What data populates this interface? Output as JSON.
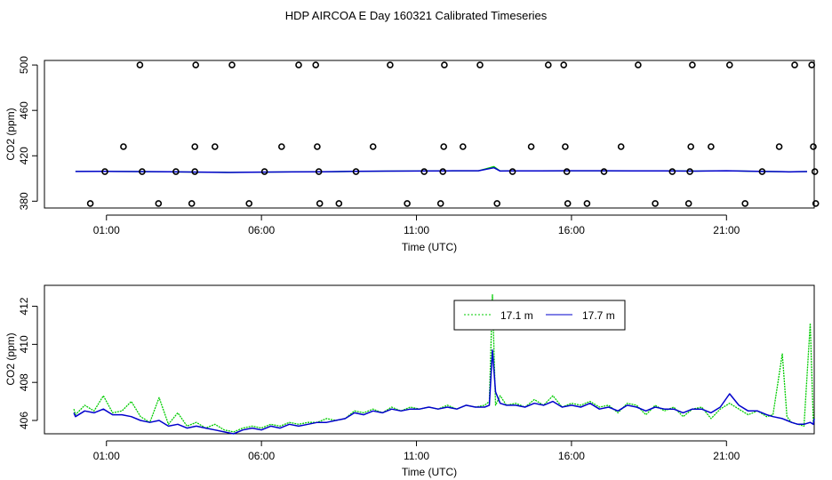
{
  "title": "HDP AIRCOA E  Day 160321  Calibrated Timeseries",
  "chart_data": [
    {
      "type": "scatter+line",
      "xlabel": "Time (UTC)",
      "ylabel": "CO2 (ppm)",
      "xlim": [
        -1.0,
        23.83
      ],
      "ylim": [
        374,
        504
      ],
      "xticks": [
        {
          "value": 1,
          "label": "01:00"
        },
        {
          "value": 6,
          "label": "06:00"
        },
        {
          "value": 11,
          "label": "11:00"
        },
        {
          "value": 16,
          "label": "16:00"
        },
        {
          "value": 21,
          "label": "21:00"
        }
      ],
      "yticks": [
        {
          "value": 380,
          "label": "380"
        },
        {
          "value": 420,
          "label": "420"
        },
        {
          "value": 460,
          "label": "460"
        },
        {
          "value": 500,
          "label": "500"
        }
      ],
      "cal_points": [
        {
          "x": 0.48,
          "y": 378
        },
        {
          "x": 0.95,
          "y": 406
        },
        {
          "x": 1.55,
          "y": 428
        },
        {
          "x": 2.08,
          "y": 500
        },
        {
          "x": 2.15,
          "y": 406
        },
        {
          "x": 2.68,
          "y": 378
        },
        {
          "x": 3.24,
          "y": 406
        },
        {
          "x": 3.75,
          "y": 378
        },
        {
          "x": 3.85,
          "y": 406
        },
        {
          "x": 3.85,
          "y": 428
        },
        {
          "x": 3.88,
          "y": 500
        },
        {
          "x": 4.5,
          "y": 428
        },
        {
          "x": 5.05,
          "y": 500
        },
        {
          "x": 5.6,
          "y": 378
        },
        {
          "x": 6.1,
          "y": 406
        },
        {
          "x": 6.65,
          "y": 428
        },
        {
          "x": 7.2,
          "y": 500
        },
        {
          "x": 7.75,
          "y": 500
        },
        {
          "x": 7.8,
          "y": 428
        },
        {
          "x": 7.85,
          "y": 406
        },
        {
          "x": 7.88,
          "y": 378
        },
        {
          "x": 8.5,
          "y": 378
        },
        {
          "x": 9.05,
          "y": 406
        },
        {
          "x": 9.6,
          "y": 428
        },
        {
          "x": 10.15,
          "y": 500
        },
        {
          "x": 10.7,
          "y": 378
        },
        {
          "x": 11.25,
          "y": 406
        },
        {
          "x": 11.78,
          "y": 378
        },
        {
          "x": 11.85,
          "y": 406
        },
        {
          "x": 11.88,
          "y": 428
        },
        {
          "x": 11.9,
          "y": 500
        },
        {
          "x": 12.5,
          "y": 428
        },
        {
          "x": 13.05,
          "y": 500
        },
        {
          "x": 13.6,
          "y": 378
        },
        {
          "x": 14.1,
          "y": 406
        },
        {
          "x": 14.7,
          "y": 428
        },
        {
          "x": 15.25,
          "y": 500
        },
        {
          "x": 15.75,
          "y": 500
        },
        {
          "x": 15.8,
          "y": 428
        },
        {
          "x": 15.85,
          "y": 406
        },
        {
          "x": 15.88,
          "y": 378
        },
        {
          "x": 16.5,
          "y": 378
        },
        {
          "x": 17.05,
          "y": 406
        },
        {
          "x": 17.6,
          "y": 428
        },
        {
          "x": 18.15,
          "y": 500
        },
        {
          "x": 18.7,
          "y": 378
        },
        {
          "x": 19.25,
          "y": 406
        },
        {
          "x": 19.78,
          "y": 378
        },
        {
          "x": 19.82,
          "y": 406
        },
        {
          "x": 19.85,
          "y": 428
        },
        {
          "x": 19.9,
          "y": 500
        },
        {
          "x": 20.5,
          "y": 428
        },
        {
          "x": 21.1,
          "y": 500
        },
        {
          "x": 21.6,
          "y": 378
        },
        {
          "x": 22.15,
          "y": 406
        },
        {
          "x": 22.7,
          "y": 428
        },
        {
          "x": 23.2,
          "y": 500
        },
        {
          "x": 23.75,
          "y": 500
        },
        {
          "x": 23.8,
          "y": 428
        },
        {
          "x": 23.85,
          "y": 406
        },
        {
          "x": 23.88,
          "y": 378
        }
      ],
      "series": [
        {
          "name": "17.1 m",
          "color": "#00cc00",
          "x": [
            0.0,
            1.0,
            2.0,
            3.0,
            4.0,
            5.0,
            6.0,
            7.0,
            8.0,
            9.0,
            10.0,
            11.0,
            12.0,
            13.0,
            13.5,
            13.7,
            14.0,
            15.0,
            16.0,
            17.0,
            18.0,
            19.0,
            20.0,
            21.0,
            22.0,
            22.8,
            23.0,
            23.3,
            23.6
          ],
          "y": [
            406.2,
            406.3,
            406.1,
            405.9,
            405.6,
            405.3,
            405.6,
            405.8,
            405.9,
            406.3,
            406.5,
            406.6,
            406.7,
            406.8,
            410.5,
            406.6,
            406.7,
            406.7,
            406.8,
            406.8,
            406.7,
            406.7,
            406.5,
            406.8,
            406.3,
            406.0,
            405.8,
            406.0,
            406.1
          ]
        },
        {
          "name": "17.7 m",
          "color": "#0000cc",
          "x": [
            0.0,
            1.0,
            2.0,
            3.0,
            4.0,
            5.0,
            6.0,
            7.0,
            8.0,
            9.0,
            10.0,
            11.0,
            12.0,
            13.0,
            13.5,
            13.7,
            14.0,
            15.0,
            16.0,
            17.0,
            18.0,
            19.0,
            20.0,
            21.0,
            22.0,
            22.8,
            23.0,
            23.3,
            23.6
          ],
          "y": [
            406.2,
            406.3,
            406.1,
            405.9,
            405.6,
            405.3,
            405.6,
            405.8,
            405.9,
            406.3,
            406.5,
            406.6,
            406.7,
            406.8,
            409.5,
            406.6,
            406.7,
            406.7,
            406.8,
            406.8,
            406.7,
            406.7,
            406.5,
            406.8,
            406.3,
            406.0,
            405.8,
            406.0,
            406.1
          ]
        }
      ]
    },
    {
      "type": "line",
      "xlabel": "Time (UTC)",
      "ylabel": "CO2 (ppm)",
      "xlim": [
        -1.0,
        23.83
      ],
      "ylim": [
        405.3,
        413.1
      ],
      "legend_position": "top-center",
      "xticks": [
        {
          "value": 1,
          "label": "01:00"
        },
        {
          "value": 6,
          "label": "06:00"
        },
        {
          "value": 11,
          "label": "11:00"
        },
        {
          "value": 16,
          "label": "16:00"
        },
        {
          "value": 21,
          "label": "21:00"
        }
      ],
      "yticks": [
        {
          "value": 406,
          "label": "406"
        },
        {
          "value": 408,
          "label": "408"
        },
        {
          "value": 410,
          "label": "410"
        },
        {
          "value": 412,
          "label": "412"
        }
      ],
      "series": [
        {
          "name": "17.1 m",
          "color": "#00cc00",
          "x": [
            -0.05,
            0.0,
            0.3,
            0.6,
            0.9,
            1.2,
            1.5,
            1.8,
            2.1,
            2.4,
            2.7,
            3.0,
            3.3,
            3.6,
            3.9,
            4.2,
            4.5,
            4.8,
            5.1,
            5.4,
            5.7,
            6.0,
            6.3,
            6.6,
            6.9,
            7.2,
            7.5,
            7.8,
            8.1,
            8.4,
            8.7,
            9.0,
            9.3,
            9.6,
            9.9,
            10.2,
            10.5,
            10.8,
            11.1,
            11.4,
            11.7,
            12.0,
            12.3,
            12.6,
            12.9,
            13.2,
            13.35,
            13.45,
            13.55,
            13.7,
            13.9,
            14.2,
            14.5,
            14.8,
            15.1,
            15.4,
            15.7,
            16.0,
            16.3,
            16.6,
            16.9,
            17.2,
            17.5,
            17.8,
            18.1,
            18.4,
            18.7,
            19.0,
            19.3,
            19.6,
            19.9,
            20.2,
            20.5,
            20.8,
            21.1,
            21.4,
            21.7,
            22.0,
            22.3,
            22.5,
            22.8,
            22.95,
            23.1,
            23.3,
            23.5,
            23.7,
            23.8,
            23.83
          ],
          "y": [
            406.6,
            406.3,
            406.8,
            406.5,
            407.3,
            406.4,
            406.5,
            407.0,
            406.2,
            405.9,
            407.2,
            405.8,
            406.4,
            405.7,
            405.9,
            405.6,
            405.8,
            405.5,
            405.4,
            405.6,
            405.7,
            405.6,
            405.8,
            405.7,
            405.9,
            405.8,
            405.9,
            405.9,
            406.1,
            406.0,
            406.1,
            406.5,
            406.4,
            406.6,
            406.4,
            406.7,
            406.5,
            406.7,
            406.6,
            406.7,
            406.6,
            406.8,
            406.6,
            406.8,
            406.7,
            406.8,
            407.0,
            412.6,
            406.8,
            407.3,
            406.8,
            406.9,
            406.7,
            407.1,
            406.8,
            407.3,
            406.7,
            406.9,
            406.8,
            407.0,
            406.7,
            406.8,
            406.4,
            406.9,
            406.8,
            406.3,
            406.8,
            406.5,
            406.7,
            406.2,
            406.6,
            406.7,
            406.1,
            406.6,
            406.9,
            406.6,
            406.3,
            406.5,
            406.2,
            406.3,
            409.5,
            406.2,
            405.9,
            405.8,
            405.7,
            411.1,
            405.9,
            406.1
          ]
        },
        {
          "name": "17.7 m",
          "color": "#0000cc",
          "x": [
            -0.05,
            0.0,
            0.3,
            0.6,
            0.9,
            1.2,
            1.5,
            1.8,
            2.1,
            2.4,
            2.7,
            3.0,
            3.3,
            3.6,
            3.9,
            4.2,
            4.5,
            4.8,
            5.1,
            5.4,
            5.7,
            6.0,
            6.3,
            6.6,
            6.9,
            7.2,
            7.5,
            7.8,
            8.1,
            8.4,
            8.7,
            9.0,
            9.3,
            9.6,
            9.9,
            10.2,
            10.5,
            10.8,
            11.1,
            11.4,
            11.7,
            12.0,
            12.3,
            12.6,
            12.9,
            13.2,
            13.35,
            13.45,
            13.55,
            13.7,
            13.9,
            14.2,
            14.5,
            14.8,
            15.1,
            15.4,
            15.7,
            16.0,
            16.3,
            16.6,
            16.9,
            17.2,
            17.5,
            17.8,
            18.1,
            18.4,
            18.7,
            19.0,
            19.3,
            19.6,
            19.9,
            20.2,
            20.5,
            20.8,
            21.1,
            21.4,
            21.7,
            22.0,
            22.3,
            22.5,
            22.8,
            22.95,
            23.1,
            23.3,
            23.5,
            23.7,
            23.8,
            23.83
          ],
          "y": [
            406.4,
            406.2,
            406.5,
            406.4,
            406.6,
            406.3,
            406.3,
            406.2,
            406.0,
            405.9,
            406.0,
            405.7,
            405.8,
            405.6,
            405.7,
            405.6,
            405.5,
            405.4,
            405.3,
            405.5,
            405.6,
            405.5,
            405.7,
            405.6,
            405.8,
            405.7,
            405.8,
            405.9,
            405.9,
            406.0,
            406.1,
            406.4,
            406.3,
            406.5,
            406.4,
            406.6,
            406.5,
            406.6,
            406.6,
            406.7,
            406.6,
            406.7,
            406.6,
            406.8,
            406.7,
            406.7,
            406.8,
            409.7,
            407.5,
            406.9,
            406.8,
            406.8,
            406.7,
            406.9,
            406.8,
            407.0,
            406.7,
            406.8,
            406.7,
            406.9,
            406.6,
            406.7,
            406.5,
            406.8,
            406.7,
            406.5,
            406.7,
            406.6,
            406.6,
            406.4,
            406.6,
            406.6,
            406.4,
            406.7,
            407.4,
            406.8,
            406.5,
            406.5,
            406.3,
            406.2,
            406.1,
            406.0,
            405.9,
            405.8,
            405.8,
            405.9,
            405.8,
            406.1
          ]
        }
      ]
    }
  ]
}
